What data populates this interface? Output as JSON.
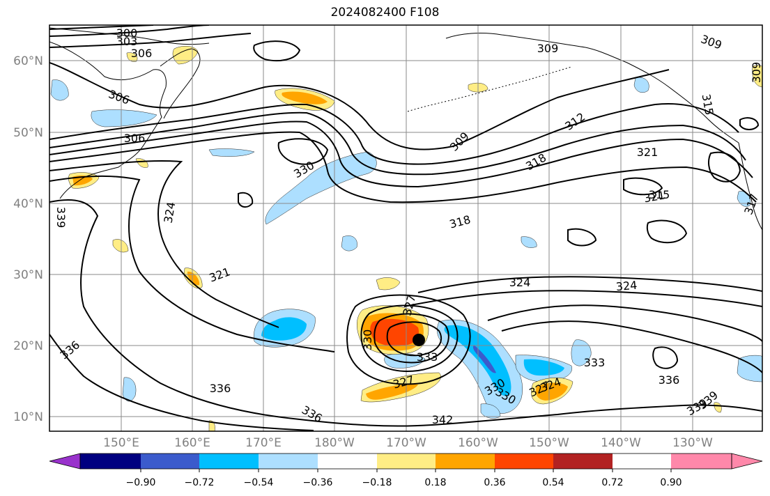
{
  "title": "2024082400 F108",
  "map": {
    "lat_labels": [
      "60°N",
      "50°N",
      "40°N",
      "30°N",
      "20°N",
      "10°N"
    ],
    "lon_labels": [
      "150°E",
      "160°E",
      "170°E",
      "180°W",
      "170°W",
      "160°W",
      "150°W",
      "140°W",
      "130°W"
    ],
    "extent": {
      "lon_west": "140°E",
      "lon_east": "120°W",
      "lat_south": "8°N",
      "lat_north": "65°N"
    },
    "grid": true,
    "contour_color": "#000000",
    "contour_labels": [
      "300",
      "303",
      "306",
      "306",
      "306",
      "309",
      "309",
      "309",
      "309",
      "321",
      "321",
      "330",
      "324",
      "318",
      "312",
      "318",
      "315",
      "321",
      "324",
      "324",
      "327",
      "330",
      "333",
      "333",
      "336",
      "336",
      "339",
      "336",
      "342",
      "339",
      "336",
      "330",
      "327",
      "324",
      "327",
      "330",
      "317",
      "315",
      "339"
    ],
    "storm_marker": {
      "lat": 20.8,
      "lon": "169.3°W",
      "color": "#000000"
    }
  },
  "colorbar": {
    "ticks": [
      "−0.90",
      "−0.72",
      "−0.54",
      "−0.36",
      "−0.18",
      "0.18",
      "0.36",
      "0.54",
      "0.72",
      "0.90"
    ],
    "under_color": "#9932cc",
    "over_color": "#ff88aa",
    "colors": [
      "#9932cc",
      "#000080",
      "#3b5bcc",
      "#00bfff",
      "#addfff",
      "#ffffff",
      "#ffed85",
      "#ffa500",
      "#ff4500",
      "#b22222",
      "#ff88aa"
    ]
  },
  "shade_colors": {
    "neg_light": "#addfff",
    "neg_mid": "#00bfff",
    "neg_strong": "#3b5bcc",
    "pos_light": "#ffed85",
    "pos_mid": "#ffa500",
    "pos_strong": "#ff4500"
  }
}
